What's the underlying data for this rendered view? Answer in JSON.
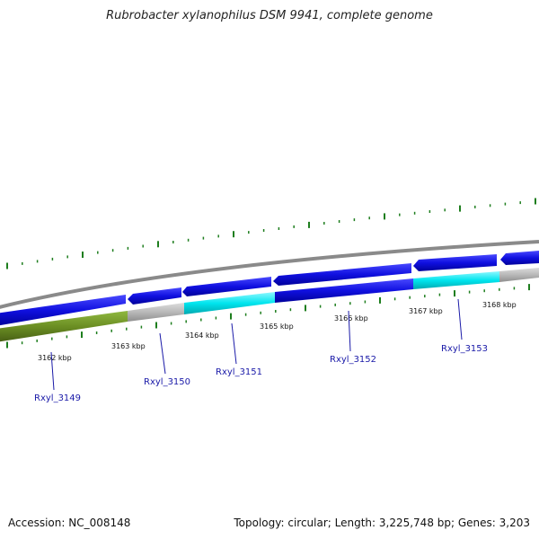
{
  "title": "Rubrobacter xylanophilus DSM 9941, complete genome",
  "footer": {
    "accession": "Accession: NC_008148",
    "stats": "Topology: circular; Length: 3,225,748 bp; Genes: 3,203"
  },
  "colors": {
    "forward_cds": "#1010e0",
    "highlight_cds": "#00e5ee",
    "noncoding": "#b8b8b8",
    "reverse_green": "#6b8e23",
    "backbone": "#8a8a8a",
    "ticks": "#1e7e1e",
    "label_line": "#1a1aa8"
  },
  "kbp_labels": [
    "3162 kbp",
    "3163 kbp",
    "3164 kbp",
    "3165 kbp",
    "3166 kbp",
    "3167 kbp",
    "3168 kbp"
  ],
  "genes": [
    {
      "name": "Rxyl_3149"
    },
    {
      "name": "Rxyl_3150"
    },
    {
      "name": "Rxyl_3151"
    },
    {
      "name": "Rxyl_3152"
    },
    {
      "name": "Rxyl_3153"
    }
  ]
}
